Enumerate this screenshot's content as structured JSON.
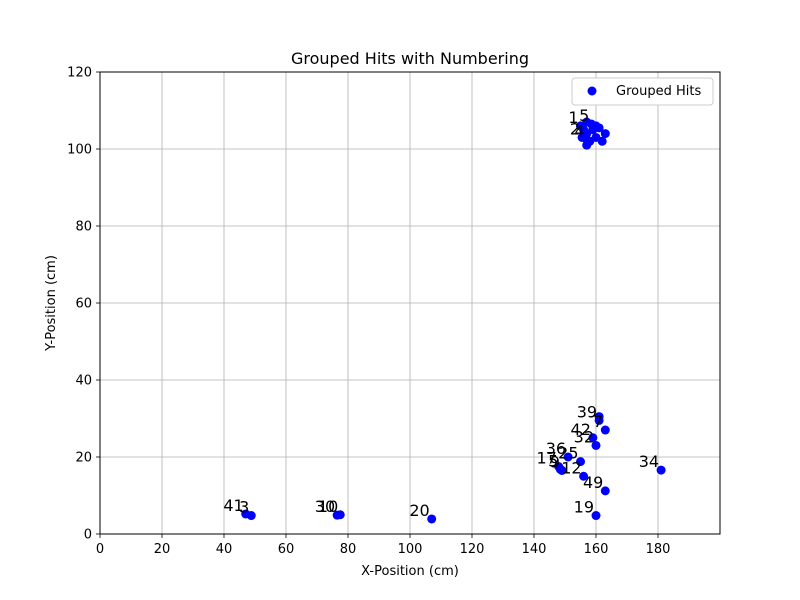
{
  "chart_data": {
    "type": "scatter",
    "title": "Grouped Hits with Numbering",
    "xlabel": "X-Position (cm)",
    "ylabel": "Y-Position (cm)",
    "xlim": [
      0,
      200
    ],
    "ylim": [
      0,
      120
    ],
    "xticks": [
      0,
      20,
      40,
      60,
      80,
      100,
      120,
      140,
      160,
      180
    ],
    "yticks": [
      0,
      20,
      40,
      60,
      80,
      100,
      120
    ],
    "grid": true,
    "legend": {
      "position": "top-right",
      "entries": [
        "Grouped Hits"
      ]
    },
    "point_color": "#0000ff",
    "series": [
      {
        "name": "Grouped Hits",
        "points": [
          {
            "label": "41",
            "x": 47,
            "y": 5.2
          },
          {
            "label": "3",
            "x": 48.8,
            "y": 4.8
          },
          {
            "label": "30",
            "x": 76.5,
            "y": 4.9
          },
          {
            "label": "10",
            "x": 77.5,
            "y": 5.0
          },
          {
            "label": "20",
            "x": 107,
            "y": 3.9
          },
          {
            "label": "19",
            "x": 160,
            "y": 4.8
          },
          {
            "label": "49",
            "x": 163,
            "y": 11.2
          },
          {
            "label": "12",
            "x": 156,
            "y": 15
          },
          {
            "label": "34",
            "x": 181,
            "y": 16.6
          },
          {
            "label": "17",
            "x": 148,
            "y": 17.5
          },
          {
            "label": "5",
            "x": 148.5,
            "y": 16.8
          },
          {
            "label": "9",
            "x": 149,
            "y": 16.5
          },
          {
            "label": "36",
            "x": 151,
            "y": 20
          },
          {
            "label": "25",
            "x": 155,
            "y": 18.8
          },
          {
            "label": "42",
            "x": 159,
            "y": 25
          },
          {
            "label": "32",
            "x": 160,
            "y": 23
          },
          {
            "label": "7",
            "x": 163,
            "y": 27
          },
          {
            "label": "39",
            "x": 161,
            "y": 29.5
          },
          {
            "label": "",
            "x": 161,
            "y": 30.5
          },
          {
            "label": "1",
            "x": 155,
            "y": 106
          },
          {
            "label": "",
            "x": 156,
            "y": 105
          },
          {
            "label": "",
            "x": 157,
            "y": 107
          },
          {
            "label": "5",
            "x": 158.5,
            "y": 106.5
          },
          {
            "label": "",
            "x": 159,
            "y": 105
          },
          {
            "label": "",
            "x": 160,
            "y": 106
          },
          {
            "label": "",
            "x": 161,
            "y": 105.5
          },
          {
            "label": "",
            "x": 157,
            "y": 104
          },
          {
            "label": "2",
            "x": 155.5,
            "y": 103
          },
          {
            "label": "4",
            "x": 157,
            "y": 102.5
          },
          {
            "label": "",
            "x": 157,
            "y": 101
          },
          {
            "label": "",
            "x": 158,
            "y": 102
          },
          {
            "label": "",
            "x": 160,
            "y": 103
          },
          {
            "label": "",
            "x": 162,
            "y": 102
          },
          {
            "label": "",
            "x": 163,
            "y": 104
          }
        ]
      }
    ]
  }
}
